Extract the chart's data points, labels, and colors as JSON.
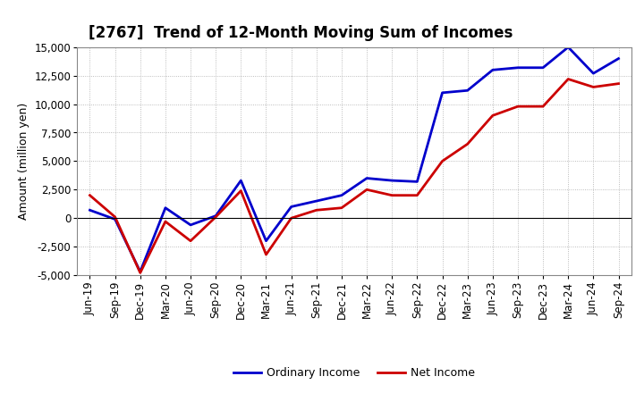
{
  "title": "[2767]  Trend of 12-Month Moving Sum of Incomes",
  "ylabel": "Amount (million yen)",
  "xlabels": [
    "Jun-19",
    "Sep-19",
    "Dec-19",
    "Mar-20",
    "Jun-20",
    "Sep-20",
    "Dec-20",
    "Mar-21",
    "Jun-21",
    "Sep-21",
    "Dec-21",
    "Mar-22",
    "Jun-22",
    "Sep-22",
    "Dec-22",
    "Mar-23",
    "Jun-23",
    "Sep-23",
    "Dec-23",
    "Mar-24",
    "Jun-24",
    "Sep-24"
  ],
  "ordinary_income": [
    700,
    -100,
    -4700,
    900,
    -600,
    200,
    3300,
    -2000,
    1000,
    1500,
    2000,
    3500,
    3300,
    3200,
    11000,
    11200,
    13000,
    13200,
    13200,
    15000,
    12700,
    14000
  ],
  "net_income": [
    2000,
    100,
    -4800,
    -300,
    -2000,
    100,
    2400,
    -3200,
    0,
    700,
    900,
    2500,
    2000,
    2000,
    5000,
    6500,
    9000,
    9800,
    9800,
    12200,
    11500,
    11800
  ],
  "ordinary_color": "#0000cc",
  "net_color": "#cc0000",
  "line_width": 2.0,
  "ylim": [
    -5000,
    15000
  ],
  "yticks": [
    -5000,
    -2500,
    0,
    2500,
    5000,
    7500,
    10000,
    12500,
    15000
  ],
  "background_color": "#ffffff",
  "plot_bg_color": "#ffffff",
  "grid_color": "#aaaaaa",
  "title_fontsize": 12,
  "label_fontsize": 9,
  "tick_fontsize": 8.5,
  "legend_labels": [
    "Ordinary Income",
    "Net Income"
  ]
}
